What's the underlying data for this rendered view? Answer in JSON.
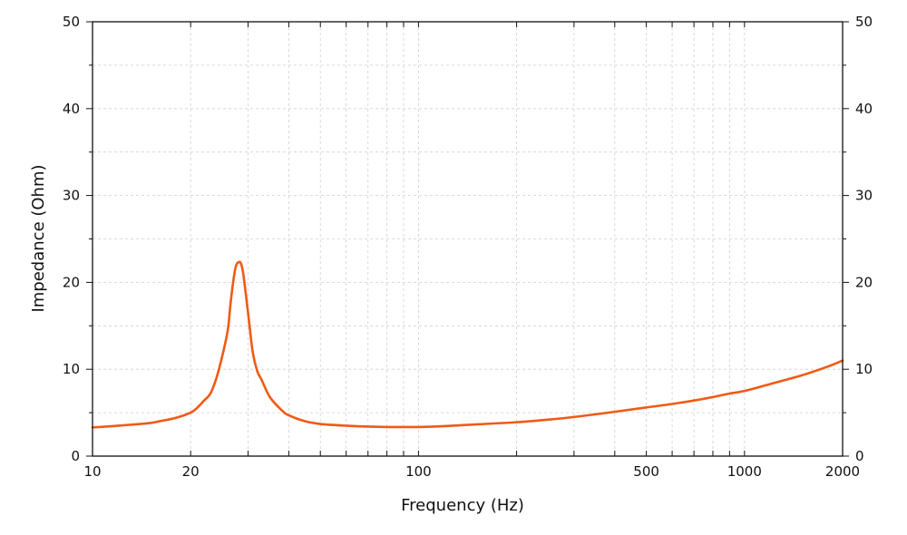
{
  "chart_data": {
    "type": "line",
    "title": "",
    "xlabel": "Frequency (Hz)",
    "ylabel": "Impedance (Ohm)",
    "xscale": "log",
    "xlim": [
      10,
      2000
    ],
    "ylim": [
      0,
      50
    ],
    "x_ticks": [
      10,
      20,
      100,
      500,
      1000,
      2000
    ],
    "x_tick_labels": [
      "10",
      "20",
      "100",
      "500",
      "1000",
      "2000"
    ],
    "y_ticks": [
      0,
      10,
      20,
      30,
      40,
      50
    ],
    "y_tick_labels_left": [
      "0",
      "10",
      "20",
      "30",
      "40",
      "50"
    ],
    "y_tick_labels_right": [
      "0",
      "10",
      "20",
      "30",
      "40",
      "50"
    ],
    "grid": true,
    "line_color": "#f05a14",
    "series": [
      {
        "x": [
          10,
          12,
          14,
          15,
          16,
          18,
          20,
          21,
          22,
          23,
          24,
          25,
          26,
          26.5,
          27,
          27.5,
          28,
          28.5,
          29,
          30,
          31,
          32,
          33,
          35,
          38,
          40,
          45,
          50,
          60,
          70,
          80,
          90,
          100,
          120,
          150,
          200,
          250,
          300,
          400,
          500,
          600,
          700,
          800,
          900,
          1000,
          1200,
          1500,
          1800,
          2000
        ],
        "y": [
          3.3,
          3.5,
          3.7,
          3.8,
          4.0,
          4.4,
          5.0,
          5.6,
          6.4,
          7.2,
          9.0,
          11.5,
          14.5,
          17.5,
          20.0,
          21.8,
          22.3,
          22.2,
          21.0,
          16.5,
          12.0,
          9.8,
          8.8,
          6.8,
          5.3,
          4.7,
          4.0,
          3.7,
          3.5,
          3.4,
          3.35,
          3.35,
          3.35,
          3.45,
          3.65,
          3.9,
          4.2,
          4.5,
          5.1,
          5.6,
          6.0,
          6.4,
          6.8,
          7.2,
          7.5,
          8.3,
          9.3,
          10.3,
          11.0
        ]
      }
    ]
  }
}
